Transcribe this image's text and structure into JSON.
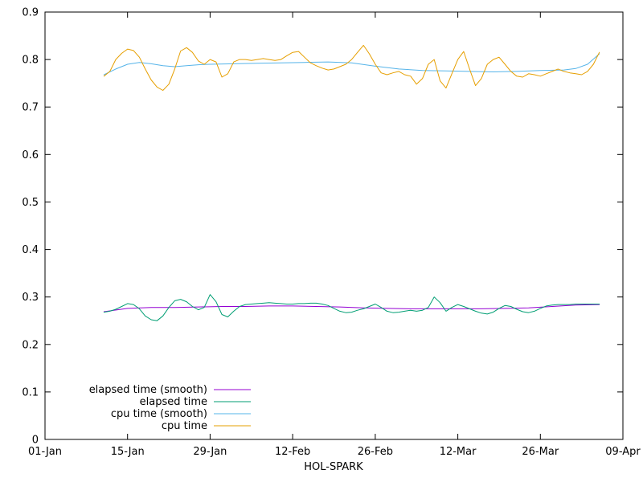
{
  "chart_data": {
    "type": "line",
    "title": "",
    "xlabel": "HOL-SPARK",
    "ylabel": "",
    "grid": false,
    "legend_position": "bottom-left-inside",
    "xlim": [
      0,
      98
    ],
    "ylim": [
      0,
      0.9
    ],
    "x_unit": "days since 01-Jan",
    "xticks": [
      {
        "v": 0,
        "label": "01-Jan"
      },
      {
        "v": 14,
        "label": "15-Jan"
      },
      {
        "v": 28,
        "label": "29-Jan"
      },
      {
        "v": 42,
        "label": "12-Feb"
      },
      {
        "v": 56,
        "label": "26-Feb"
      },
      {
        "v": 70,
        "label": "12-Mar"
      },
      {
        "v": 84,
        "label": "26-Mar"
      },
      {
        "v": 98,
        "label": "09-Apr"
      }
    ],
    "yticks": [
      {
        "v": 0,
        "label": "0"
      },
      {
        "v": 0.1,
        "label": "0.1"
      },
      {
        "v": 0.2,
        "label": "0.2"
      },
      {
        "v": 0.3,
        "label": "0.3"
      },
      {
        "v": 0.4,
        "label": "0.4"
      },
      {
        "v": 0.5,
        "label": "0.5"
      },
      {
        "v": 0.6,
        "label": "0.6"
      },
      {
        "v": 0.7,
        "label": "0.7"
      },
      {
        "v": 0.8,
        "label": "0.8"
      },
      {
        "v": 0.9,
        "label": "0.9"
      }
    ],
    "series": [
      {
        "name": "elapsed time (smooth)",
        "color": "#9400d3",
        "points": [
          [
            10,
            0.269
          ],
          [
            14,
            0.276
          ],
          [
            18,
            0.278
          ],
          [
            22,
            0.278
          ],
          [
            26,
            0.279
          ],
          [
            30,
            0.28
          ],
          [
            34,
            0.28
          ],
          [
            38,
            0.281
          ],
          [
            42,
            0.281
          ],
          [
            46,
            0.28
          ],
          [
            50,
            0.279
          ],
          [
            54,
            0.277
          ],
          [
            58,
            0.276
          ],
          [
            62,
            0.275
          ],
          [
            66,
            0.275
          ],
          [
            70,
            0.275
          ],
          [
            74,
            0.275
          ],
          [
            78,
            0.276
          ],
          [
            82,
            0.277
          ],
          [
            86,
            0.28
          ],
          [
            90,
            0.283
          ],
          [
            94,
            0.284
          ]
        ]
      },
      {
        "name": "elapsed time",
        "color": "#009e73",
        "points": [
          [
            10,
            0.268
          ],
          [
            11,
            0.27
          ],
          [
            12,
            0.274
          ],
          [
            13,
            0.28
          ],
          [
            14,
            0.286
          ],
          [
            15,
            0.284
          ],
          [
            16,
            0.275
          ],
          [
            17,
            0.26
          ],
          [
            18,
            0.252
          ],
          [
            19,
            0.25
          ],
          [
            20,
            0.26
          ],
          [
            21,
            0.278
          ],
          [
            22,
            0.292
          ],
          [
            23,
            0.295
          ],
          [
            24,
            0.29
          ],
          [
            25,
            0.28
          ],
          [
            26,
            0.273
          ],
          [
            27,
            0.278
          ],
          [
            28,
            0.305
          ],
          [
            29,
            0.29
          ],
          [
            30,
            0.263
          ],
          [
            31,
            0.258
          ],
          [
            32,
            0.27
          ],
          [
            33,
            0.28
          ],
          [
            34,
            0.284
          ],
          [
            35,
            0.285
          ],
          [
            36,
            0.286
          ],
          [
            37,
            0.287
          ],
          [
            38,
            0.288
          ],
          [
            39,
            0.287
          ],
          [
            40,
            0.286
          ],
          [
            41,
            0.285
          ],
          [
            42,
            0.285
          ],
          [
            43,
            0.286
          ],
          [
            44,
            0.286
          ],
          [
            45,
            0.287
          ],
          [
            46,
            0.287
          ],
          [
            47,
            0.285
          ],
          [
            48,
            0.282
          ],
          [
            49,
            0.276
          ],
          [
            50,
            0.27
          ],
          [
            51,
            0.267
          ],
          [
            52,
            0.268
          ],
          [
            53,
            0.272
          ],
          [
            54,
            0.275
          ],
          [
            55,
            0.28
          ],
          [
            56,
            0.285
          ],
          [
            57,
            0.278
          ],
          [
            58,
            0.27
          ],
          [
            59,
            0.267
          ],
          [
            60,
            0.268
          ],
          [
            61,
            0.27
          ],
          [
            62,
            0.272
          ],
          [
            63,
            0.27
          ],
          [
            64,
            0.272
          ],
          [
            65,
            0.278
          ],
          [
            66,
            0.3
          ],
          [
            67,
            0.288
          ],
          [
            68,
            0.27
          ],
          [
            69,
            0.278
          ],
          [
            70,
            0.284
          ],
          [
            71,
            0.28
          ],
          [
            72,
            0.275
          ],
          [
            73,
            0.27
          ],
          [
            74,
            0.266
          ],
          [
            75,
            0.264
          ],
          [
            76,
            0.268
          ],
          [
            77,
            0.276
          ],
          [
            78,
            0.282
          ],
          [
            79,
            0.28
          ],
          [
            80,
            0.274
          ],
          [
            81,
            0.269
          ],
          [
            82,
            0.267
          ],
          [
            83,
            0.27
          ],
          [
            84,
            0.276
          ],
          [
            85,
            0.281
          ],
          [
            86,
            0.283
          ],
          [
            87,
            0.284
          ],
          [
            88,
            0.284
          ],
          [
            89,
            0.284
          ],
          [
            90,
            0.285
          ],
          [
            91,
            0.285
          ],
          [
            92,
            0.285
          ],
          [
            93,
            0.285
          ],
          [
            94,
            0.285
          ]
        ]
      },
      {
        "name": "cpu time (smooth)",
        "color": "#56b4e9",
        "points": [
          [
            10,
            0.768
          ],
          [
            12,
            0.78
          ],
          [
            14,
            0.79
          ],
          [
            16,
            0.794
          ],
          [
            18,
            0.791
          ],
          [
            20,
            0.787
          ],
          [
            22,
            0.785
          ],
          [
            24,
            0.787
          ],
          [
            26,
            0.789
          ],
          [
            28,
            0.79
          ],
          [
            32,
            0.791
          ],
          [
            36,
            0.792
          ],
          [
            40,
            0.793
          ],
          [
            44,
            0.794
          ],
          [
            48,
            0.795
          ],
          [
            52,
            0.793
          ],
          [
            56,
            0.786
          ],
          [
            60,
            0.78
          ],
          [
            64,
            0.777
          ],
          [
            68,
            0.776
          ],
          [
            72,
            0.775
          ],
          [
            76,
            0.774
          ],
          [
            80,
            0.775
          ],
          [
            84,
            0.777
          ],
          [
            88,
            0.778
          ],
          [
            90,
            0.781
          ],
          [
            92,
            0.79
          ],
          [
            94,
            0.812
          ]
        ]
      },
      {
        "name": "cpu time",
        "color": "#e69f00",
        "points": [
          [
            10,
            0.765
          ],
          [
            11,
            0.775
          ],
          [
            12,
            0.8
          ],
          [
            13,
            0.813
          ],
          [
            14,
            0.822
          ],
          [
            15,
            0.819
          ],
          [
            16,
            0.805
          ],
          [
            17,
            0.78
          ],
          [
            18,
            0.757
          ],
          [
            19,
            0.742
          ],
          [
            20,
            0.735
          ],
          [
            21,
            0.748
          ],
          [
            22,
            0.78
          ],
          [
            23,
            0.818
          ],
          [
            24,
            0.825
          ],
          [
            25,
            0.815
          ],
          [
            26,
            0.797
          ],
          [
            27,
            0.79
          ],
          [
            28,
            0.8
          ],
          [
            29,
            0.795
          ],
          [
            30,
            0.763
          ],
          [
            31,
            0.77
          ],
          [
            32,
            0.795
          ],
          [
            33,
            0.8
          ],
          [
            34,
            0.8
          ],
          [
            35,
            0.798
          ],
          [
            36,
            0.8
          ],
          [
            37,
            0.802
          ],
          [
            38,
            0.8
          ],
          [
            39,
            0.798
          ],
          [
            40,
            0.8
          ],
          [
            41,
            0.808
          ],
          [
            42,
            0.815
          ],
          [
            43,
            0.817
          ],
          [
            44,
            0.805
          ],
          [
            45,
            0.793
          ],
          [
            46,
            0.787
          ],
          [
            47,
            0.782
          ],
          [
            48,
            0.778
          ],
          [
            49,
            0.78
          ],
          [
            50,
            0.785
          ],
          [
            51,
            0.79
          ],
          [
            52,
            0.8
          ],
          [
            53,
            0.815
          ],
          [
            54,
            0.83
          ],
          [
            55,
            0.812
          ],
          [
            56,
            0.79
          ],
          [
            57,
            0.772
          ],
          [
            58,
            0.768
          ],
          [
            59,
            0.772
          ],
          [
            60,
            0.775
          ],
          [
            61,
            0.768
          ],
          [
            62,
            0.765
          ],
          [
            63,
            0.748
          ],
          [
            64,
            0.76
          ],
          [
            65,
            0.79
          ],
          [
            66,
            0.8
          ],
          [
            67,
            0.755
          ],
          [
            68,
            0.74
          ],
          [
            69,
            0.77
          ],
          [
            70,
            0.8
          ],
          [
            71,
            0.817
          ],
          [
            72,
            0.78
          ],
          [
            73,
            0.745
          ],
          [
            74,
            0.76
          ],
          [
            75,
            0.79
          ],
          [
            76,
            0.8
          ],
          [
            77,
            0.805
          ],
          [
            78,
            0.79
          ],
          [
            79,
            0.775
          ],
          [
            80,
            0.765
          ],
          [
            81,
            0.763
          ],
          [
            82,
            0.77
          ],
          [
            83,
            0.768
          ],
          [
            84,
            0.765
          ],
          [
            85,
            0.77
          ],
          [
            86,
            0.775
          ],
          [
            87,
            0.78
          ],
          [
            88,
            0.775
          ],
          [
            89,
            0.772
          ],
          [
            90,
            0.77
          ],
          [
            91,
            0.768
          ],
          [
            92,
            0.775
          ],
          [
            93,
            0.79
          ],
          [
            94,
            0.815
          ]
        ]
      }
    ]
  }
}
